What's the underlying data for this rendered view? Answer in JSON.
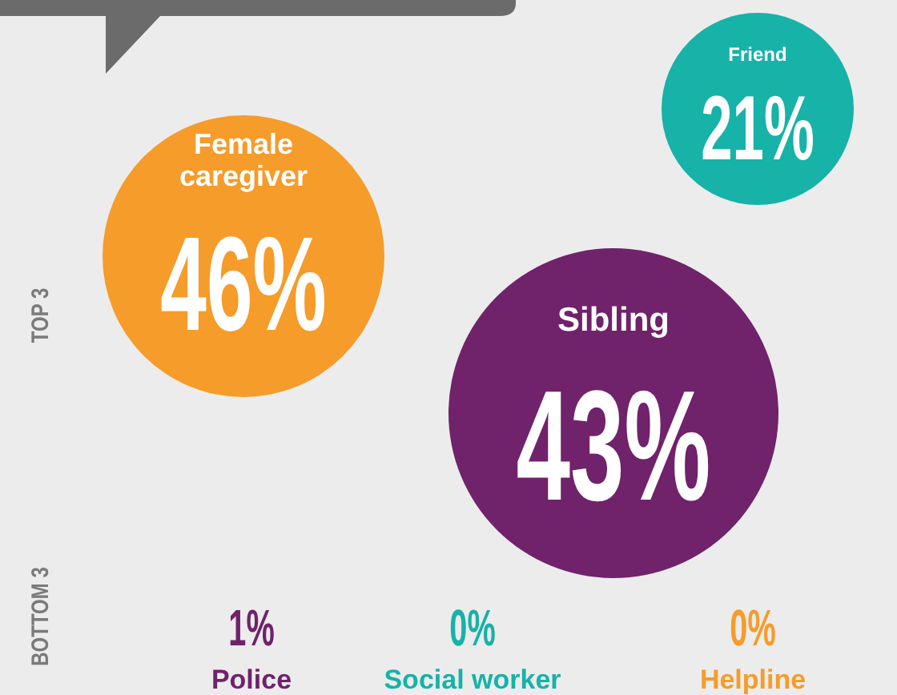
{
  "chart_data": {
    "type": "other",
    "categories": [
      "Female caregiver",
      "Sibling",
      "Friend",
      "Police",
      "Social worker",
      "Helpline"
    ],
    "values": [
      46,
      43,
      21,
      1,
      0,
      0
    ],
    "value_labels": [
      "46%",
      "43%",
      "21%",
      "1%",
      "0%",
      "0%"
    ],
    "colors": [
      "#f59c2a",
      "#70226b",
      "#17b2a8",
      "#70226b",
      "#17b2a8",
      "#f59c2a"
    ],
    "annotations": [
      "TOP 3",
      "BOTTOM 3"
    ]
  }
}
